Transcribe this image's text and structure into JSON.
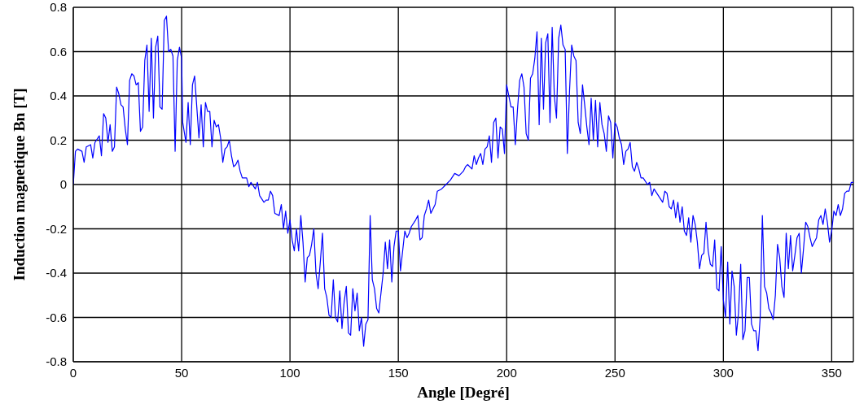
{
  "chart_data": {
    "type": "line",
    "xlabel": "Angle [Degré]",
    "ylabel": "Induction magnetique Bn [T]",
    "xlim": [
      0,
      360
    ],
    "xticks": [
      0,
      50,
      100,
      150,
      200,
      250,
      300,
      350
    ],
    "ylim": [
      -0.8,
      0.8
    ],
    "yticks": [
      -0.8,
      -0.6,
      -0.4,
      -0.2,
      0,
      0.2,
      0.4,
      0.6,
      0.8
    ],
    "grid": true,
    "line_style": "solid",
    "series": [
      {
        "color": "#0000ff",
        "x": [
          0,
          1,
          2,
          4,
          5,
          6,
          8,
          9,
          10,
          12,
          13,
          14,
          15,
          16,
          17,
          18,
          19,
          20,
          21,
          22,
          23,
          24,
          25,
          26,
          27,
          28,
          29,
          30,
          31,
          32,
          33,
          34,
          35,
          36,
          37,
          38,
          39,
          40,
          41,
          42,
          43,
          44,
          45,
          46,
          47,
          48,
          49,
          50,
          50.5,
          52,
          53,
          54,
          55,
          56,
          57,
          58,
          59,
          60,
          61,
          62,
          63,
          64,
          65,
          66,
          67,
          68,
          69,
          70,
          71,
          72,
          73,
          74,
          75,
          76,
          77,
          78,
          80,
          81,
          82,
          84,
          85,
          86,
          88,
          89,
          90,
          91,
          92,
          93,
          95,
          96,
          97,
          98,
          99,
          100,
          101,
          102,
          103,
          104,
          105,
          106,
          107,
          108,
          109,
          110,
          111,
          112,
          113,
          114,
          115,
          116,
          117,
          118,
          119,
          120,
          121,
          122,
          123,
          124,
          125,
          126,
          127,
          128,
          129,
          130,
          131,
          132,
          133,
          134,
          135,
          136,
          137,
          138,
          139,
          140,
          141,
          142,
          143,
          144,
          145,
          146,
          147,
          148,
          149,
          150,
          151,
          152,
          153,
          154,
          155,
          156,
          158,
          159,
          160,
          161,
          162,
          163,
          164,
          165,
          167,
          168,
          170,
          172,
          174,
          176,
          178,
          180,
          181,
          182,
          184,
          185,
          186,
          187,
          188,
          189,
          190,
          191,
          192,
          193,
          194,
          195,
          196,
          197,
          198,
          199,
          200,
          201,
          202,
          203,
          204,
          205,
          206,
          207,
          208,
          209,
          210,
          211,
          212,
          213,
          214,
          215,
          216,
          217,
          218,
          219,
          220,
          221,
          222,
          223,
          224,
          225,
          226,
          227,
          228,
          229,
          230,
          231,
          232,
          233,
          234,
          235,
          236,
          237,
          238,
          239,
          240,
          241,
          242,
          243,
          244,
          245,
          246,
          247,
          248,
          249,
          250,
          251,
          252,
          253,
          254,
          255,
          256,
          257,
          258,
          259,
          260,
          261,
          262,
          263,
          265,
          266,
          267,
          268,
          270,
          272,
          273,
          274,
          275,
          276,
          277,
          278,
          279,
          280,
          281,
          282,
          283,
          284,
          285,
          286,
          287,
          288,
          289,
          290,
          291,
          292,
          293,
          294,
          295,
          296,
          297,
          298,
          299,
          300,
          301,
          302,
          303,
          304,
          305,
          306,
          307,
          308,
          309,
          310,
          311,
          312,
          313,
          314,
          315,
          316,
          317,
          318,
          319,
          320,
          321,
          322,
          323,
          324,
          325,
          326,
          327,
          328,
          329,
          330,
          331,
          332,
          333,
          334,
          335,
          336,
          337,
          338,
          339,
          340,
          341,
          342,
          343,
          344,
          345,
          346,
          347,
          348,
          349,
          350,
          351,
          352,
          353,
          354,
          355,
          356,
          357,
          358,
          359,
          360
        ],
        "values": [
          0.0,
          0.15,
          0.16,
          0.15,
          0.1,
          0.17,
          0.18,
          0.12,
          0.19,
          0.22,
          0.13,
          0.32,
          0.3,
          0.19,
          0.27,
          0.15,
          0.17,
          0.44,
          0.41,
          0.36,
          0.35,
          0.25,
          0.18,
          0.47,
          0.5,
          0.49,
          0.45,
          0.46,
          0.24,
          0.26,
          0.56,
          0.63,
          0.33,
          0.66,
          0.3,
          0.62,
          0.67,
          0.35,
          0.34,
          0.74,
          0.76,
          0.6,
          0.61,
          0.58,
          0.15,
          0.56,
          0.62,
          0.57,
          0.28,
          0.19,
          0.37,
          0.18,
          0.45,
          0.49,
          0.35,
          0.21,
          0.36,
          0.17,
          0.37,
          0.33,
          0.33,
          0.17,
          0.29,
          0.26,
          0.27,
          0.21,
          0.1,
          0.16,
          0.17,
          0.2,
          0.13,
          0.08,
          0.09,
          0.11,
          0.06,
          0.03,
          0.03,
          -0.01,
          0.01,
          -0.02,
          0.01,
          -0.05,
          -0.08,
          -0.07,
          -0.07,
          -0.03,
          -0.05,
          -0.13,
          -0.14,
          -0.09,
          -0.2,
          -0.12,
          -0.22,
          -0.16,
          -0.25,
          -0.3,
          -0.2,
          -0.3,
          -0.14,
          -0.26,
          -0.44,
          -0.33,
          -0.32,
          -0.27,
          -0.2,
          -0.4,
          -0.47,
          -0.35,
          -0.22,
          -0.47,
          -0.51,
          -0.59,
          -0.6,
          -0.43,
          -0.6,
          -0.62,
          -0.48,
          -0.65,
          -0.53,
          -0.46,
          -0.67,
          -0.68,
          -0.47,
          -0.57,
          -0.49,
          -0.66,
          -0.6,
          -0.73,
          -0.63,
          -0.61,
          -0.14,
          -0.43,
          -0.47,
          -0.56,
          -0.58,
          -0.49,
          -0.4,
          -0.26,
          -0.38,
          -0.25,
          -0.44,
          -0.28,
          -0.21,
          -0.21,
          -0.39,
          -0.3,
          -0.21,
          -0.24,
          -0.22,
          -0.19,
          -0.16,
          -0.14,
          -0.25,
          -0.24,
          -0.14,
          -0.11,
          -0.07,
          -0.13,
          -0.09,
          -0.03,
          -0.02,
          0.0,
          0.02,
          0.05,
          0.04,
          0.06,
          0.08,
          0.09,
          0.07,
          0.13,
          0.09,
          0.12,
          0.14,
          0.09,
          0.16,
          0.17,
          0.22,
          0.1,
          0.28,
          0.3,
          0.12,
          0.26,
          0.25,
          0.14,
          0.45,
          0.4,
          0.35,
          0.35,
          0.18,
          0.34,
          0.47,
          0.5,
          0.44,
          0.23,
          0.2,
          0.48,
          0.5,
          0.57,
          0.69,
          0.27,
          0.66,
          0.34,
          0.64,
          0.68,
          0.28,
          0.71,
          0.4,
          0.3,
          0.66,
          0.72,
          0.63,
          0.61,
          0.14,
          0.42,
          0.63,
          0.58,
          0.56,
          0.28,
          0.23,
          0.45,
          0.36,
          0.26,
          0.18,
          0.39,
          0.2,
          0.38,
          0.17,
          0.37,
          0.27,
          0.23,
          0.15,
          0.31,
          0.28,
          0.12,
          0.28,
          0.26,
          0.21,
          0.18,
          0.09,
          0.15,
          0.16,
          0.19,
          0.08,
          0.06,
          0.1,
          0.07,
          0.03,
          0.03,
          0.0,
          0.01,
          -0.05,
          -0.02,
          -0.05,
          -0.08,
          -0.03,
          -0.04,
          -0.1,
          -0.11,
          -0.07,
          -0.15,
          -0.08,
          -0.17,
          -0.1,
          -0.21,
          -0.23,
          -0.15,
          -0.26,
          -0.14,
          -0.18,
          -0.26,
          -0.38,
          -0.32,
          -0.31,
          -0.17,
          -0.3,
          -0.36,
          -0.37,
          -0.25,
          -0.47,
          -0.48,
          -0.28,
          -0.52,
          -0.6,
          -0.35,
          -0.63,
          -0.39,
          -0.46,
          -0.68,
          -0.58,
          -0.36,
          -0.7,
          -0.66,
          -0.42,
          -0.42,
          -0.63,
          -0.66,
          -0.66,
          -0.75,
          -0.6,
          -0.14,
          -0.46,
          -0.49,
          -0.56,
          -0.58,
          -0.61,
          -0.5,
          -0.27,
          -0.33,
          -0.46,
          -0.51,
          -0.22,
          -0.38,
          -0.23,
          -0.39,
          -0.32,
          -0.24,
          -0.22,
          -0.4,
          -0.29,
          -0.17,
          -0.19,
          -0.24,
          -0.28,
          -0.26,
          -0.24,
          -0.16,
          -0.14,
          -0.18,
          -0.11,
          -0.17,
          -0.26,
          -0.21,
          -0.12,
          -0.14,
          -0.09,
          -0.14,
          -0.11,
          -0.04,
          -0.03,
          -0.03,
          0.01,
          0.01
        ]
      }
    ]
  }
}
